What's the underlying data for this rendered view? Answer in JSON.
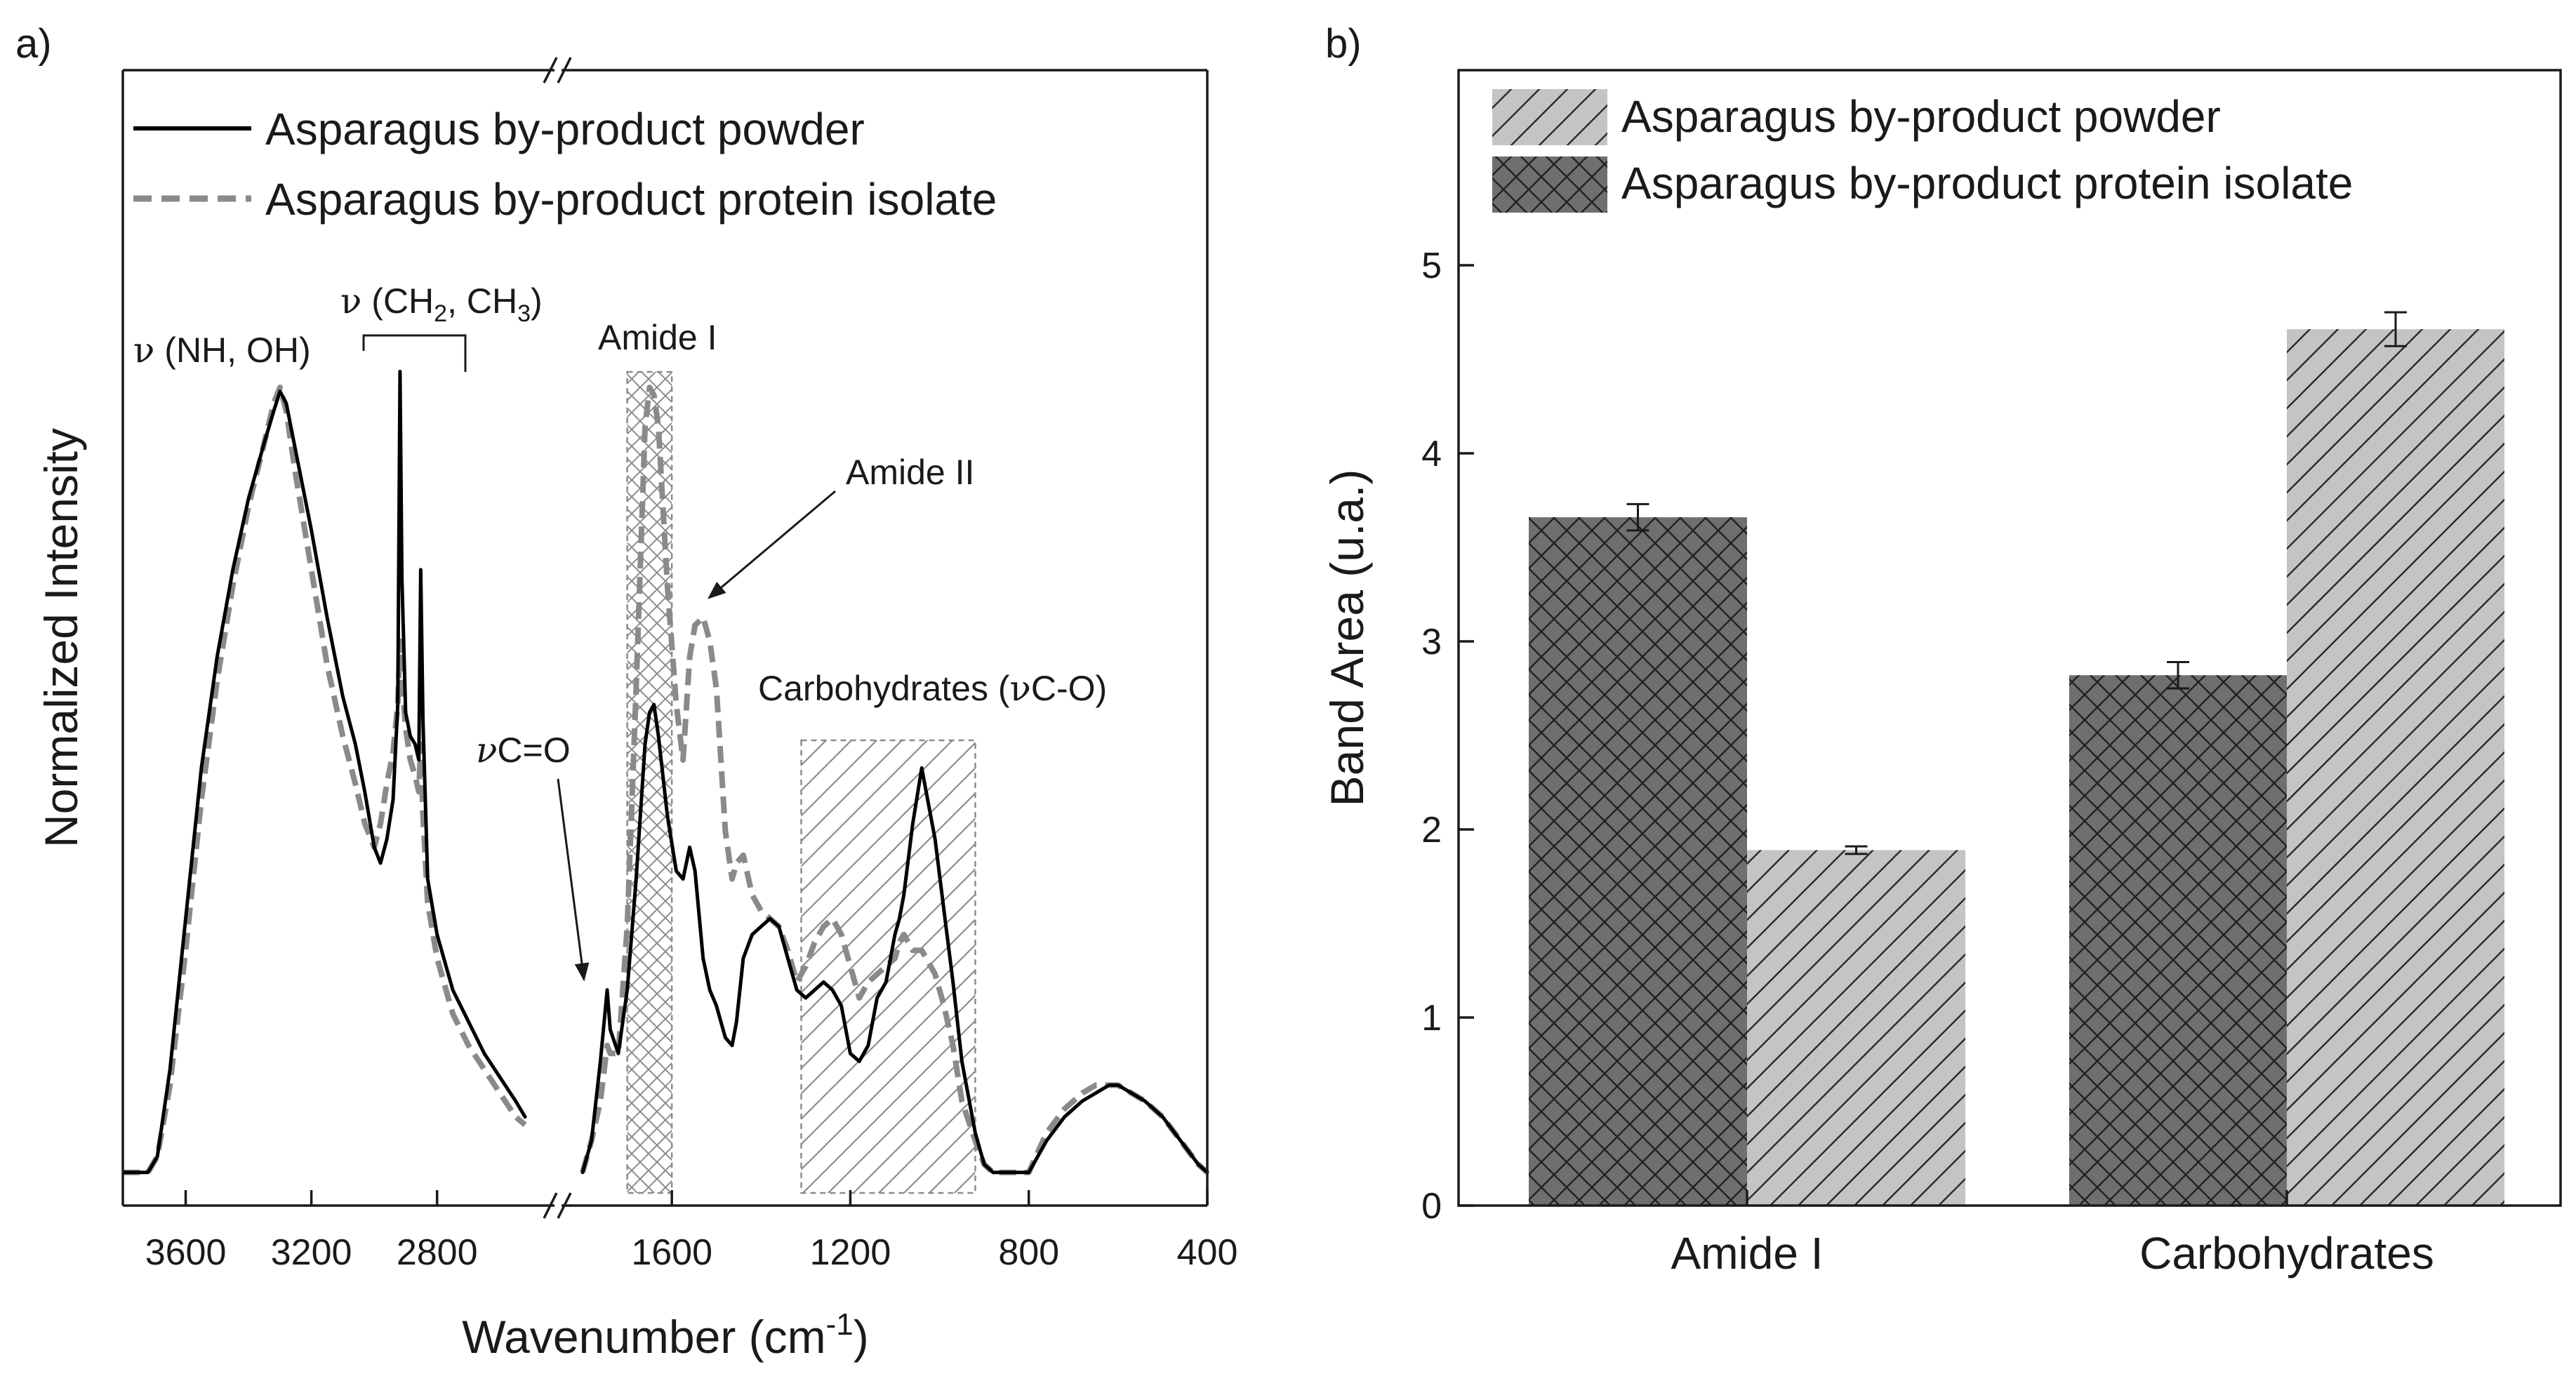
{
  "colors": {
    "ink": "#1a1a1a",
    "powder": "#000000",
    "isolate": "#8a8a8a",
    "bar_powder_fill": "#c4c4c4",
    "bar_isolate_fill": "#6f6f6f",
    "region_stroke": "#8c8c8c",
    "hatch_powder": "#2a2a2a",
    "hatch_isolate": "#222222"
  },
  "panel_a": {
    "label": "a)",
    "ylabel": "Normalized Intensity",
    "xlabel_main": "Wavenumber (cm",
    "xlabel_sup": "-1",
    "xlabel_close": ")",
    "legend": [
      {
        "label": "Asparagus by-product powder",
        "style": "solid"
      },
      {
        "label": "Asparagus by-product protein isolate",
        "style": "dashed"
      }
    ],
    "annotations": {
      "nh_oh_greek": "ν",
      "nh_oh": " (NH, OH)",
      "ch_greek": "ν",
      "ch_a": " (CH",
      "ch_sub1": "2",
      "ch_b": ", CH",
      "ch_sub2": "3",
      "ch_c": ")",
      "amide_i": "Amide I",
      "amide_ii": "Amide II",
      "carb_a": "Carbohydrates (",
      "carb_greek": "ν",
      "carb_b": "C-O)",
      "co_greek": "ν",
      "co": "C=O"
    }
  },
  "panel_b": {
    "label": "b)",
    "legend": [
      {
        "label": "Asparagus by-product powder",
        "pattern": "single-hatch"
      },
      {
        "label": "Asparagus by-product protein isolate",
        "pattern": "cross-hatch"
      }
    ]
  },
  "chart_data": [
    {
      "type": "line",
      "title": "",
      "xlabel": "Wavenumber (cm-1)",
      "ylabel": "Normalized Intensity",
      "x_axis_reversed": true,
      "x_axis_break": true,
      "x_segments": [
        [
          3800,
          2500
        ],
        [
          1800,
          400
        ]
      ],
      "xticks": [
        3600,
        3200,
        2800,
        1600,
        1200,
        800,
        400
      ],
      "y_ticks_shown": false,
      "highlight_regions": [
        {
          "label": "Amide I",
          "range": [
            1700,
            1600
          ],
          "pattern": "cross-hatch"
        },
        {
          "label": "Carbohydrates (νC-O)",
          "range": [
            1310,
            920
          ],
          "pattern": "single-hatch"
        }
      ],
      "series": [
        {
          "name": "Asparagus by-product powder",
          "style": "solid",
          "segment_1": [
            [
              3800,
              0.01
            ],
            [
              3780,
              0.01
            ],
            [
              3750,
              0.01
            ],
            [
              3720,
              0.01
            ],
            [
              3690,
              0.03
            ],
            [
              3650,
              0.14
            ],
            [
              3600,
              0.33
            ],
            [
              3550,
              0.52
            ],
            [
              3500,
              0.66
            ],
            [
              3450,
              0.77
            ],
            [
              3400,
              0.86
            ],
            [
              3350,
              0.93
            ],
            [
              3320,
              0.97
            ],
            [
              3300,
              0.995
            ],
            [
              3280,
              0.98
            ],
            [
              3250,
              0.92
            ],
            [
              3200,
              0.82
            ],
            [
              3150,
              0.71
            ],
            [
              3100,
              0.61
            ],
            [
              3060,
              0.55
            ],
            [
              3030,
              0.49
            ],
            [
              3000,
              0.42
            ],
            [
              2980,
              0.4
            ],
            [
              2960,
              0.43
            ],
            [
              2940,
              0.48
            ],
            [
              2925,
              0.6
            ],
            [
              2918,
              1.02
            ],
            [
              2912,
              0.76
            ],
            [
              2900,
              0.59
            ],
            [
              2885,
              0.56
            ],
            [
              2870,
              0.55
            ],
            [
              2858,
              0.53
            ],
            [
              2852,
              0.77
            ],
            [
              2845,
              0.58
            ],
            [
              2830,
              0.38
            ],
            [
              2800,
              0.31
            ],
            [
              2750,
              0.24
            ],
            [
              2700,
              0.2
            ],
            [
              2650,
              0.16
            ],
            [
              2600,
              0.13
            ],
            [
              2550,
              0.1
            ],
            [
              2520,
              0.08
            ]
          ],
          "segment_2": [
            [
              1800,
              0.01
            ],
            [
              1780,
              0.05
            ],
            [
              1760,
              0.15
            ],
            [
              1745,
              0.24
            ],
            [
              1738,
              0.19
            ],
            [
              1720,
              0.16
            ],
            [
              1700,
              0.24
            ],
            [
              1680,
              0.38
            ],
            [
              1660,
              0.55
            ],
            [
              1650,
              0.59
            ],
            [
              1640,
              0.6
            ],
            [
              1630,
              0.56
            ],
            [
              1610,
              0.46
            ],
            [
              1590,
              0.39
            ],
            [
              1575,
              0.38
            ],
            [
              1560,
              0.42
            ],
            [
              1548,
              0.39
            ],
            [
              1530,
              0.28
            ],
            [
              1515,
              0.24
            ],
            [
              1500,
              0.22
            ],
            [
              1480,
              0.18
            ],
            [
              1465,
              0.17
            ],
            [
              1455,
              0.2
            ],
            [
              1440,
              0.28
            ],
            [
              1420,
              0.31
            ],
            [
              1400,
              0.32
            ],
            [
              1380,
              0.33
            ],
            [
              1360,
              0.32
            ],
            [
              1340,
              0.28
            ],
            [
              1320,
              0.24
            ],
            [
              1300,
              0.23
            ],
            [
              1280,
              0.24
            ],
            [
              1260,
              0.25
            ],
            [
              1240,
              0.24
            ],
            [
              1220,
              0.22
            ],
            [
              1200,
              0.16
            ],
            [
              1180,
              0.15
            ],
            [
              1160,
              0.17
            ],
            [
              1140,
              0.23
            ],
            [
              1120,
              0.25
            ],
            [
              1100,
              0.31
            ],
            [
              1090,
              0.33
            ],
            [
              1080,
              0.36
            ],
            [
              1060,
              0.45
            ],
            [
              1040,
              0.52
            ],
            [
              1030,
              0.49
            ],
            [
              1010,
              0.43
            ],
            [
              990,
              0.34
            ],
            [
              970,
              0.25
            ],
            [
              950,
              0.15
            ],
            [
              920,
              0.06
            ],
            [
              900,
              0.02
            ],
            [
              880,
              0.01
            ],
            [
              860,
              0.01
            ],
            [
              840,
              0.01
            ],
            [
              820,
              0.01
            ],
            [
              800,
              0.01
            ],
            [
              760,
              0.05
            ],
            [
              720,
              0.08
            ],
            [
              680,
              0.1
            ],
            [
              650,
              0.11
            ],
            [
              620,
              0.12
            ],
            [
              600,
              0.12
            ],
            [
              570,
              0.11
            ],
            [
              540,
              0.1
            ],
            [
              500,
              0.08
            ],
            [
              460,
              0.05
            ],
            [
              420,
              0.02
            ],
            [
              400,
              0.01
            ]
          ]
        },
        {
          "name": "Asparagus by-product protein isolate",
          "style": "dashed",
          "segment_1": [
            [
              3800,
              0.01
            ],
            [
              3780,
              0.01
            ],
            [
              3750,
              0.01
            ],
            [
              3720,
              0.01
            ],
            [
              3690,
              0.03
            ],
            [
              3650,
              0.12
            ],
            [
              3600,
              0.29
            ],
            [
              3550,
              0.48
            ],
            [
              3500,
              0.63
            ],
            [
              3450,
              0.75
            ],
            [
              3400,
              0.85
            ],
            [
              3350,
              0.93
            ],
            [
              3320,
              0.98
            ],
            [
              3300,
              1.0
            ],
            [
              3280,
              0.97
            ],
            [
              3250,
              0.89
            ],
            [
              3200,
              0.77
            ],
            [
              3150,
              0.65
            ],
            [
              3100,
              0.56
            ],
            [
              3060,
              0.5
            ],
            [
              3030,
              0.45
            ],
            [
              3000,
              0.42
            ],
            [
              2980,
              0.45
            ],
            [
              2960,
              0.5
            ],
            [
              2940,
              0.54
            ],
            [
              2925,
              0.6
            ],
            [
              2918,
              0.68
            ],
            [
              2912,
              0.63
            ],
            [
              2900,
              0.57
            ],
            [
              2885,
              0.53
            ],
            [
              2870,
              0.51
            ],
            [
              2858,
              0.49
            ],
            [
              2852,
              0.55
            ],
            [
              2845,
              0.46
            ],
            [
              2830,
              0.35
            ],
            [
              2800,
              0.28
            ],
            [
              2750,
              0.21
            ],
            [
              2700,
              0.17
            ],
            [
              2650,
              0.14
            ],
            [
              2600,
              0.11
            ],
            [
              2550,
              0.08
            ],
            [
              2520,
              0.07
            ]
          ],
          "segment_2": [
            [
              1800,
              0.01
            ],
            [
              1780,
              0.05
            ],
            [
              1760,
              0.1
            ],
            [
              1745,
              0.17
            ],
            [
              1738,
              0.16
            ],
            [
              1720,
              0.16
            ],
            [
              1700,
              0.32
            ],
            [
              1680,
              0.62
            ],
            [
              1660,
              0.95
            ],
            [
              1650,
              1.0
            ],
            [
              1640,
              0.99
            ],
            [
              1630,
              0.95
            ],
            [
              1610,
              0.75
            ],
            [
              1590,
              0.6
            ],
            [
              1575,
              0.53
            ],
            [
              1560,
              0.66
            ],
            [
              1548,
              0.7
            ],
            [
              1530,
              0.71
            ],
            [
              1515,
              0.68
            ],
            [
              1500,
              0.62
            ],
            [
              1480,
              0.44
            ],
            [
              1465,
              0.38
            ],
            [
              1455,
              0.4
            ],
            [
              1440,
              0.41
            ],
            [
              1420,
              0.36
            ],
            [
              1400,
              0.34
            ],
            [
              1380,
              0.33
            ],
            [
              1360,
              0.32
            ],
            [
              1340,
              0.29
            ],
            [
              1320,
              0.25
            ],
            [
              1300,
              0.27
            ],
            [
              1280,
              0.3
            ],
            [
              1260,
              0.32
            ],
            [
              1240,
              0.33
            ],
            [
              1220,
              0.31
            ],
            [
              1200,
              0.27
            ],
            [
              1180,
              0.23
            ],
            [
              1160,
              0.25
            ],
            [
              1140,
              0.26
            ],
            [
              1120,
              0.27
            ],
            [
              1100,
              0.28
            ],
            [
              1090,
              0.3
            ],
            [
              1080,
              0.31
            ],
            [
              1060,
              0.29
            ],
            [
              1040,
              0.29
            ],
            [
              1030,
              0.28
            ],
            [
              1010,
              0.26
            ],
            [
              990,
              0.22
            ],
            [
              970,
              0.17
            ],
            [
              950,
              0.1
            ],
            [
              920,
              0.05
            ],
            [
              900,
              0.02
            ],
            [
              880,
              0.01
            ],
            [
              860,
              0.01
            ],
            [
              840,
              0.01
            ],
            [
              820,
              0.01
            ],
            [
              800,
              0.01
            ],
            [
              760,
              0.06
            ],
            [
              720,
              0.09
            ],
            [
              680,
              0.11
            ],
            [
              650,
              0.12
            ],
            [
              620,
              0.12
            ],
            [
              600,
              0.12
            ],
            [
              570,
              0.11
            ],
            [
              540,
              0.1
            ],
            [
              500,
              0.08
            ],
            [
              460,
              0.05
            ],
            [
              420,
              0.02
            ],
            [
              400,
              0.01
            ]
          ]
        }
      ]
    },
    {
      "type": "bar",
      "title": "",
      "xlabel": "",
      "ylabel": "Band Area (u.a.)",
      "categories": [
        "Amide I",
        "Carbohydrates"
      ],
      "ylim": [
        0,
        5.9
      ],
      "yticks": [
        0,
        1,
        2,
        3,
        4,
        5
      ],
      "series": [
        {
          "name": "Asparagus by-product protein isolate",
          "values": [
            3.66,
            2.82
          ],
          "errors": [
            0.07,
            0.07
          ]
        },
        {
          "name": "Asparagus by-product powder",
          "values": [
            1.89,
            4.66
          ],
          "errors": [
            0.02,
            0.09
          ]
        }
      ]
    }
  ]
}
